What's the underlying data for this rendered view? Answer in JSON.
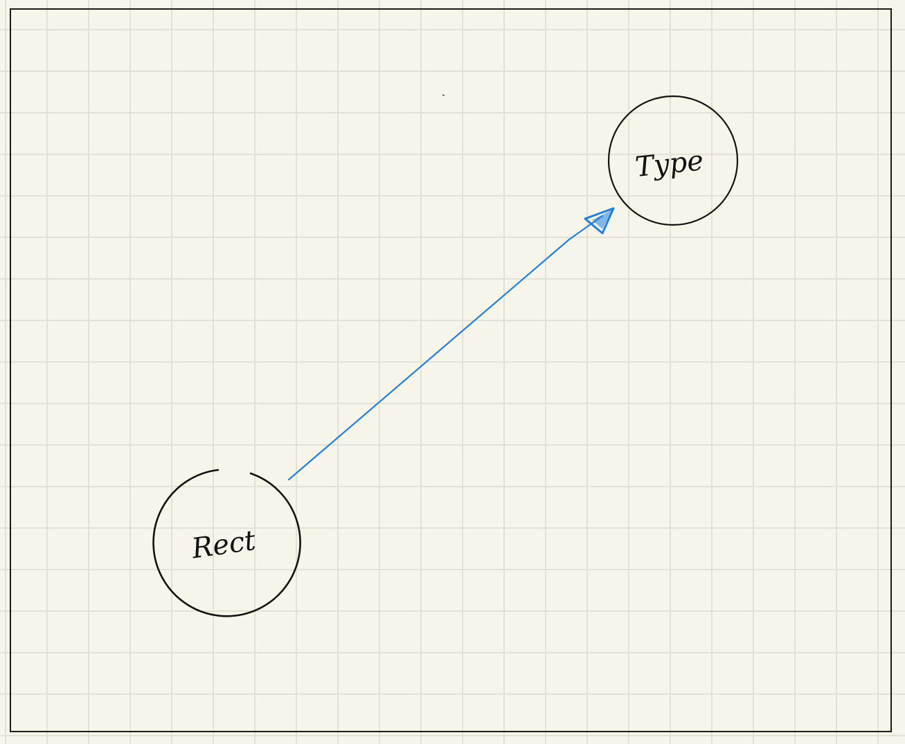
{
  "colors": {
    "paper": "#f7f5ea",
    "grid": "#e3e1d3",
    "ink": "#111111",
    "arrow": "#1f7fe0"
  },
  "nodes": {
    "rect": {
      "label": "Rect"
    },
    "type": {
      "label": "Type"
    }
  },
  "edges": [
    {
      "from": "rect",
      "to": "type"
    }
  ]
}
